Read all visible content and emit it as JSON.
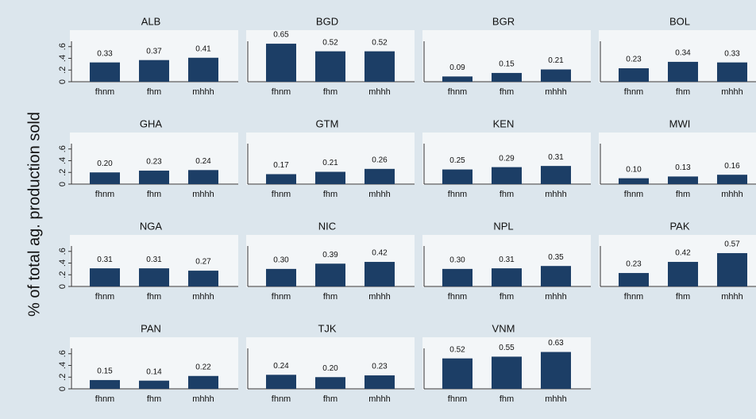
{
  "ylabel": "% of total ag. production sold",
  "chart_data": [
    {
      "type": "bar",
      "title": "ALB",
      "categories": [
        "fhnm",
        "fhm",
        "mhhh"
      ],
      "values": [
        0.33,
        0.37,
        0.41
      ],
      "value_labels": [
        "0.33",
        "0.37",
        "0.41"
      ],
      "color": "#1c3e66",
      "ylim": [
        0,
        0.8
      ],
      "yticks": [
        0,
        {
          "value": 0.2,
          "label": ".2"
        },
        {
          "value": 0.4,
          "label": ".4"
        },
        {
          "value": 0.6,
          "label": ".6"
        }
      ]
    },
    {
      "type": "bar",
      "title": "BGD",
      "categories": [
        "fhnm",
        "fhm",
        "mhhh"
      ],
      "values": [
        0.65,
        0.52,
        0.52
      ],
      "value_labels": [
        "0.65",
        "0.52",
        "0.52"
      ],
      "color": "#1c3e66",
      "ylim": [
        0,
        0.8
      ],
      "yticks": []
    },
    {
      "type": "bar",
      "title": "BGR",
      "categories": [
        "fhnm",
        "fhm",
        "mhhh"
      ],
      "values": [
        0.09,
        0.15,
        0.21
      ],
      "value_labels": [
        "0.09",
        "0.15",
        "0.21"
      ],
      "color": "#1c3e66",
      "ylim": [
        0,
        0.8
      ],
      "yticks": []
    },
    {
      "type": "bar",
      "title": "BOL",
      "categories": [
        "fhnm",
        "fhm",
        "mhhh"
      ],
      "values": [
        0.23,
        0.34,
        0.33
      ],
      "value_labels": [
        "0.23",
        "0.34",
        "0.33"
      ],
      "color": "#1c3e66",
      "ylim": [
        0,
        0.8
      ],
      "yticks": []
    },
    {
      "type": "bar",
      "title": "GHA",
      "categories": [
        "fhnm",
        "fhm",
        "mhhh"
      ],
      "values": [
        0.2,
        0.23,
        0.24
      ],
      "value_labels": [
        "0.20",
        "0.23",
        "0.24"
      ],
      "color": "#1c3e66",
      "ylim": [
        0,
        0.8
      ],
      "yticks": [
        0,
        {
          "value": 0.2,
          "label": ".2"
        },
        {
          "value": 0.4,
          "label": ".4"
        },
        {
          "value": 0.6,
          "label": ".6"
        }
      ]
    },
    {
      "type": "bar",
      "title": "GTM",
      "categories": [
        "fhnm",
        "fhm",
        "mhhh"
      ],
      "values": [
        0.17,
        0.21,
        0.26
      ],
      "value_labels": [
        "0.17",
        "0.21",
        "0.26"
      ],
      "color": "#1c3e66",
      "ylim": [
        0,
        0.8
      ],
      "yticks": []
    },
    {
      "type": "bar",
      "title": "KEN",
      "categories": [
        "fhnm",
        "fhm",
        "mhhh"
      ],
      "values": [
        0.25,
        0.29,
        0.31
      ],
      "value_labels": [
        "0.25",
        "0.29",
        "0.31"
      ],
      "color": "#1c3e66",
      "ylim": [
        0,
        0.8
      ],
      "yticks": []
    },
    {
      "type": "bar",
      "title": "MWI",
      "categories": [
        "fhnm",
        "fhm",
        "mhhh"
      ],
      "values": [
        0.1,
        0.13,
        0.16
      ],
      "value_labels": [
        "0.10",
        "0.13",
        "0.16"
      ],
      "color": "#1c3e66",
      "ylim": [
        0,
        0.8
      ],
      "yticks": []
    },
    {
      "type": "bar",
      "title": "NGA",
      "categories": [
        "fhnm",
        "fhm",
        "mhhh"
      ],
      "values": [
        0.31,
        0.31,
        0.27
      ],
      "value_labels": [
        "0.31",
        "0.31",
        "0.27"
      ],
      "color": "#1c3e66",
      "ylim": [
        0,
        0.8
      ],
      "yticks": [
        0,
        {
          "value": 0.2,
          "label": ".2"
        },
        {
          "value": 0.4,
          "label": ".4"
        },
        {
          "value": 0.6,
          "label": ".6"
        }
      ]
    },
    {
      "type": "bar",
      "title": "NIC",
      "categories": [
        "fhnm",
        "fhm",
        "mhhh"
      ],
      "values": [
        0.3,
        0.39,
        0.42
      ],
      "value_labels": [
        "0.30",
        "0.39",
        "0.42"
      ],
      "color": "#1c3e66",
      "ylim": [
        0,
        0.8
      ],
      "yticks": []
    },
    {
      "type": "bar",
      "title": "NPL",
      "categories": [
        "fhnm",
        "fhm",
        "mhhh"
      ],
      "values": [
        0.3,
        0.31,
        0.35
      ],
      "value_labels": [
        "0.30",
        "0.31",
        "0.35"
      ],
      "color": "#1c3e66",
      "ylim": [
        0,
        0.8
      ],
      "yticks": []
    },
    {
      "type": "bar",
      "title": "PAK",
      "categories": [
        "fhnm",
        "fhm",
        "mhhh"
      ],
      "values": [
        0.23,
        0.42,
        0.57
      ],
      "value_labels": [
        "0.23",
        "0.42",
        "0.57"
      ],
      "color": "#1c3e66",
      "ylim": [
        0,
        0.8
      ],
      "yticks": []
    },
    {
      "type": "bar",
      "title": "PAN",
      "categories": [
        "fhnm",
        "fhm",
        "mhhh"
      ],
      "values": [
        0.15,
        0.14,
        0.22
      ],
      "value_labels": [
        "0.15",
        "0.14",
        "0.22"
      ],
      "color": "#1c3e66",
      "ylim": [
        0,
        0.8
      ],
      "yticks": [
        0,
        {
          "value": 0.2,
          "label": ".2"
        },
        {
          "value": 0.4,
          "label": ".4"
        },
        {
          "value": 0.6,
          "label": ".6"
        }
      ]
    },
    {
      "type": "bar",
      "title": "TJK",
      "categories": [
        "fhnm",
        "fhm",
        "mhhh"
      ],
      "values": [
        0.24,
        0.2,
        0.23
      ],
      "value_labels": [
        "0.24",
        "0.20",
        "0.23"
      ],
      "color": "#1c3e66",
      "ylim": [
        0,
        0.8
      ],
      "yticks": []
    },
    {
      "type": "bar",
      "title": "VNM",
      "categories": [
        "fhnm",
        "fhm",
        "mhhh"
      ],
      "values": [
        0.52,
        0.55,
        0.63
      ],
      "value_labels": [
        "0.52",
        "0.55",
        "0.63"
      ],
      "color": "#1c3e66",
      "ylim": [
        0,
        0.8
      ],
      "yticks": []
    }
  ]
}
